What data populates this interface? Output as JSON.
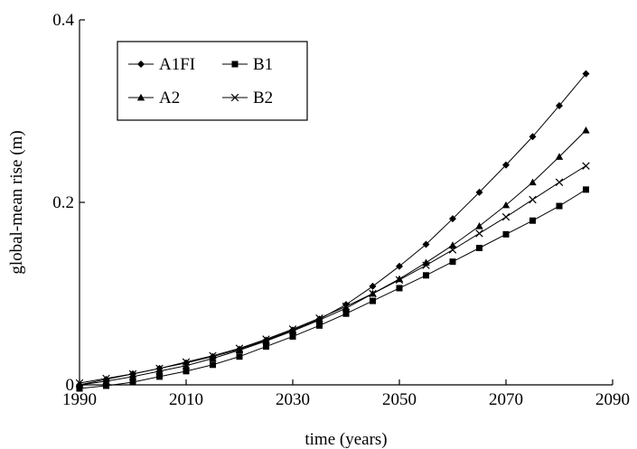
{
  "chart_data": {
    "type": "line",
    "title": "",
    "xlabel": "time (years)",
    "ylabel": "global-mean rise (m)",
    "xlim": [
      1990,
      2090
    ],
    "ylim": [
      0,
      0.4
    ],
    "xticks": [
      1990,
      2010,
      2030,
      2050,
      2070,
      2090
    ],
    "yticks": [
      0,
      0.2,
      0.4
    ],
    "xtick_labels": [
      "1990",
      "2010",
      "2030",
      "2050",
      "2070",
      "2090"
    ],
    "ytick_labels": [
      "0",
      "0.2",
      "0.4"
    ],
    "grid": false,
    "legend_placement": "top-left",
    "x": [
      1990,
      1995,
      2000,
      2005,
      2010,
      2015,
      2020,
      2025,
      2030,
      2035,
      2040,
      2045,
      2050,
      2055,
      2060,
      2065,
      2070,
      2075,
      2080,
      2085
    ],
    "series": [
      {
        "name": "A1FI",
        "marker": "diamond",
        "values": [
          0.0,
          0.006,
          0.012,
          0.018,
          0.024,
          0.031,
          0.039,
          0.049,
          0.06,
          0.072,
          0.088,
          0.108,
          0.13,
          0.154,
          0.182,
          0.211,
          0.241,
          0.272,
          0.306,
          0.341
        ]
      },
      {
        "name": "B1",
        "marker": "square",
        "values": [
          -0.004,
          -0.001,
          0.003,
          0.009,
          0.015,
          0.022,
          0.031,
          0.042,
          0.053,
          0.065,
          0.078,
          0.092,
          0.106,
          0.12,
          0.135,
          0.15,
          0.165,
          0.18,
          0.196,
          0.214
        ]
      },
      {
        "name": "A2",
        "marker": "triangle",
        "values": [
          0.0,
          0.004,
          0.009,
          0.015,
          0.021,
          0.029,
          0.038,
          0.048,
          0.059,
          0.071,
          0.084,
          0.1,
          0.116,
          0.134,
          0.153,
          0.174,
          0.197,
          0.222,
          0.25,
          0.279
        ]
      },
      {
        "name": "B2",
        "marker": "x",
        "values": [
          0.002,
          0.007,
          0.012,
          0.018,
          0.025,
          0.032,
          0.04,
          0.05,
          0.061,
          0.073,
          0.086,
          0.1,
          0.115,
          0.131,
          0.148,
          0.166,
          0.184,
          0.203,
          0.222,
          0.24
        ]
      }
    ],
    "legend_layout": [
      [
        "A1FI",
        "B1"
      ],
      [
        "A2",
        "B2"
      ]
    ]
  }
}
